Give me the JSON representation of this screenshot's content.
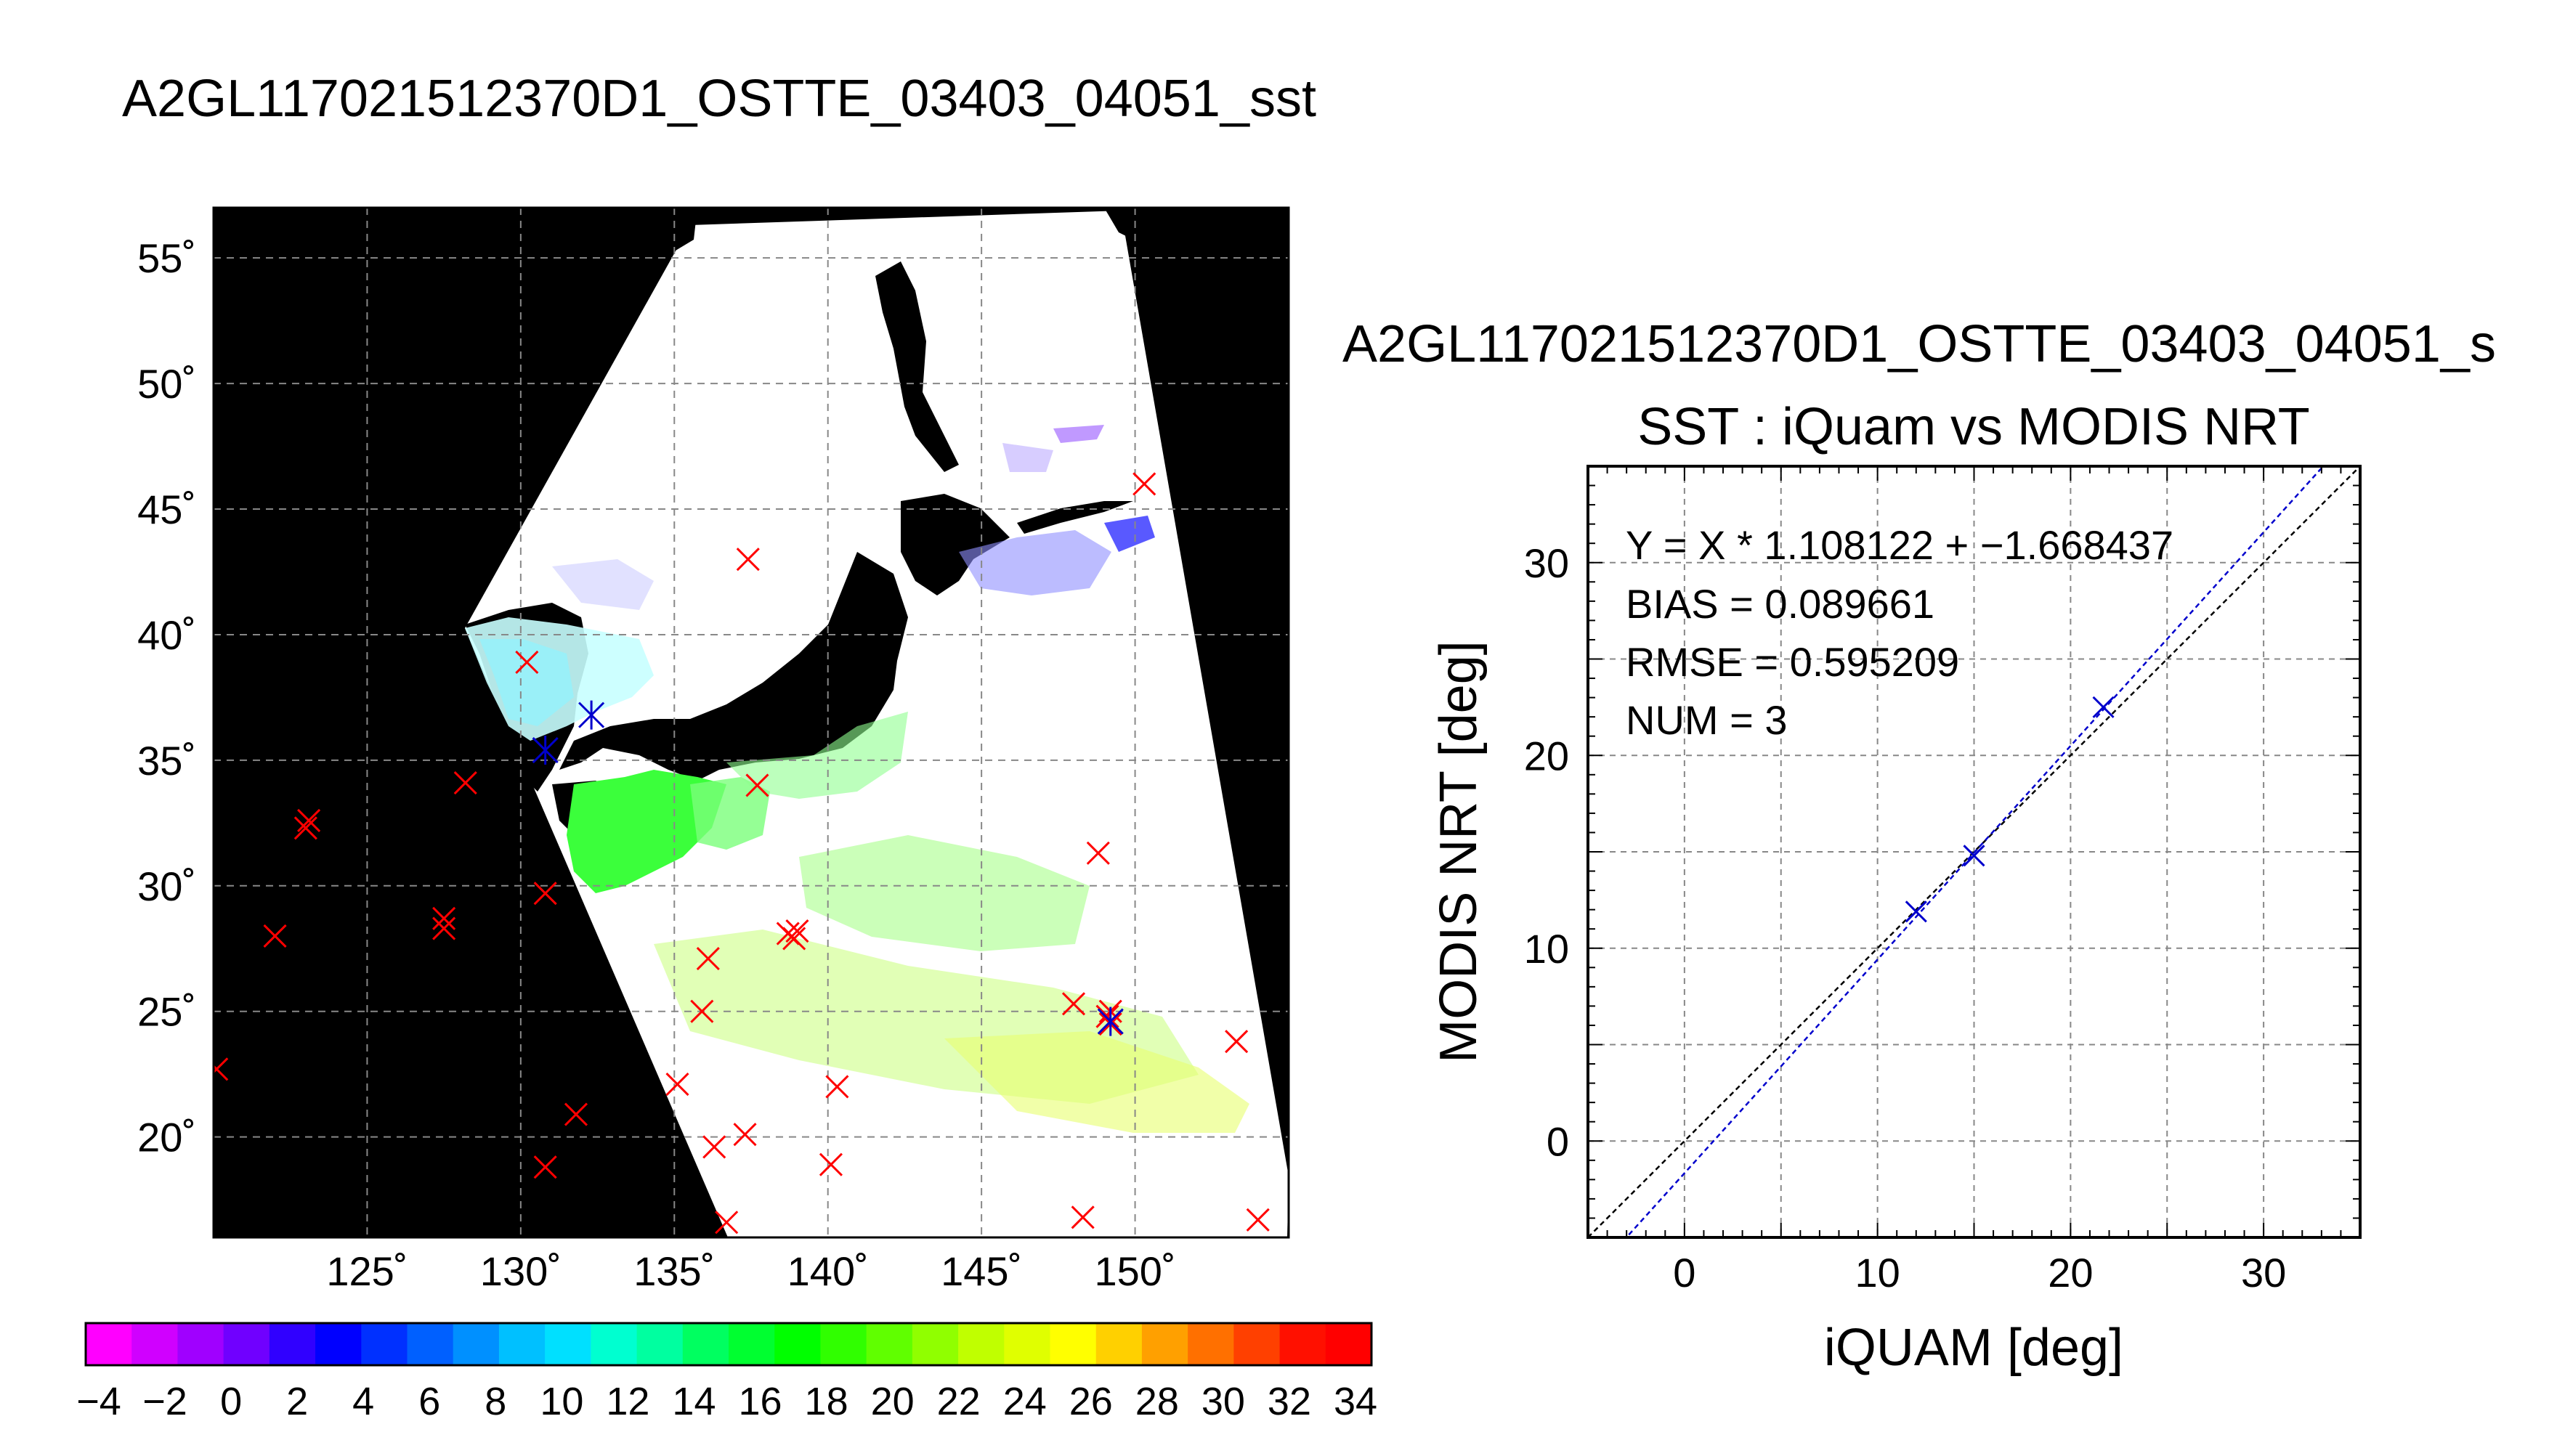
{
  "map": {
    "title": "A2GL117021512370D1_OSTTE_03403_04051_sst",
    "lat_ticks": [
      "55˚",
      "50˚",
      "45˚",
      "40˚",
      "35˚",
      "30˚",
      "25˚",
      "20˚"
    ],
    "lon_ticks": [
      "125˚",
      "130˚",
      "135˚",
      "140˚",
      "145˚",
      "150˚"
    ],
    "colorbar_labels": [
      "−4",
      "−2",
      "0",
      "2",
      "4",
      "6",
      "8",
      "10",
      "12",
      "14",
      "16",
      "18",
      "20",
      "22",
      "24",
      "26",
      "28",
      "30",
      "32",
      "34"
    ],
    "colorbar_colors": [
      "#ff00ff",
      "#d000ff",
      "#a000ff",
      "#7000ff",
      "#3000ff",
      "#0000ff",
      "#0030ff",
      "#0060ff",
      "#0090ff",
      "#00c0ff",
      "#00e0ff",
      "#00ffd0",
      "#00ffa0",
      "#00ff60",
      "#00ff30",
      "#00ff00",
      "#30ff00",
      "#60ff00",
      "#90ff00",
      "#c0ff00",
      "#e0ff00",
      "#ffff00",
      "#ffd000",
      "#ffa000",
      "#ff7000",
      "#ff4000",
      "#ff1000",
      "#ff0000"
    ],
    "background_color": "#000000",
    "grid": true,
    "swath_color": "#ffffff",
    "marker_color_match": "#0000cc",
    "marker_color_nomatch": "#ff0000"
  },
  "scatter": {
    "title": "A2GL117021512370D1_OSTTE_03403_04051_s",
    "subtitle": "SST : iQuam vs MODIS NRT",
    "stats": {
      "fit": "Y = X * 1.108122 + −1.668437",
      "bias": "BIAS = 0.089661",
      "rmse": "RMSE = 0.595209",
      "num": "NUM = 3"
    }
  },
  "chart_data": [
    {
      "type": "scatter",
      "title": "A2GL117021512370D1_OSTTE_03403_04051_sst",
      "xlim": [
        120,
        155
      ],
      "ylim": [
        16,
        57
      ],
      "x_ticks": [
        125,
        130,
        135,
        140,
        145,
        150
      ],
      "y_ticks": [
        20,
        25,
        30,
        35,
        40,
        45,
        50,
        55
      ],
      "grid": true,
      "colorbar": {
        "min": -4,
        "max": 34,
        "step": 2
      },
      "series": [
        {
          "name": "",
          "x": [
            120.1,
            122.0,
            123.0,
            123.1,
            127.5,
            127.5,
            128.2,
            130.2,
            130.8,
            130.8,
            131.8,
            135.1,
            135.9,
            136.1,
            136.3,
            136.7,
            137.3,
            137.4,
            137.7,
            138.7,
            138.9,
            139.0,
            140.3,
            140.1,
            148.0,
            148.3,
            148.8,
            149.1,
            149.2,
            149.2,
            150.3,
            153.3,
            154.0
          ],
          "y": [
            22.7,
            28.0,
            32.3,
            32.6,
            28.3,
            28.7,
            34.1,
            38.9,
            29.7,
            18.8,
            20.9,
            22.1,
            25.0,
            27.1,
            19.6,
            16.6,
            20.1,
            43.0,
            34.0,
            28.1,
            27.9,
            28.2,
            22.0,
            18.9,
            25.3,
            16.8,
            31.3,
            24.8,
            25.0,
            24.5,
            46.0,
            23.8,
            16.7
          ]
        },
        {
          "name": "",
          "x": [
            130.8,
            132.3,
            149.2
          ],
          "y": [
            35.4,
            36.8,
            24.6
          ]
        }
      ]
    },
    {
      "type": "scatter",
      "title": "SST : iQuam vs MODIS NRT",
      "xlabel": "iQUAM [deg]",
      "ylabel": "MODIS NRT [deg]",
      "xlim": [
        -5,
        35
      ],
      "ylim": [
        -5,
        35
      ],
      "x_ticks": [
        0,
        10,
        20,
        30
      ],
      "y_ticks": [
        0,
        10,
        20,
        30
      ],
      "grid": true,
      "series": [
        {
          "name": "",
          "x": [
            12.0,
            15.0,
            21.7
          ],
          "y": [
            11.9,
            14.8,
            22.5
          ]
        }
      ],
      "lines": [
        {
          "name": "",
          "slope": 1.0,
          "intercept": 0.0
        },
        {
          "name": "",
          "slope": 1.108122,
          "intercept": -1.668437
        }
      ]
    }
  ]
}
